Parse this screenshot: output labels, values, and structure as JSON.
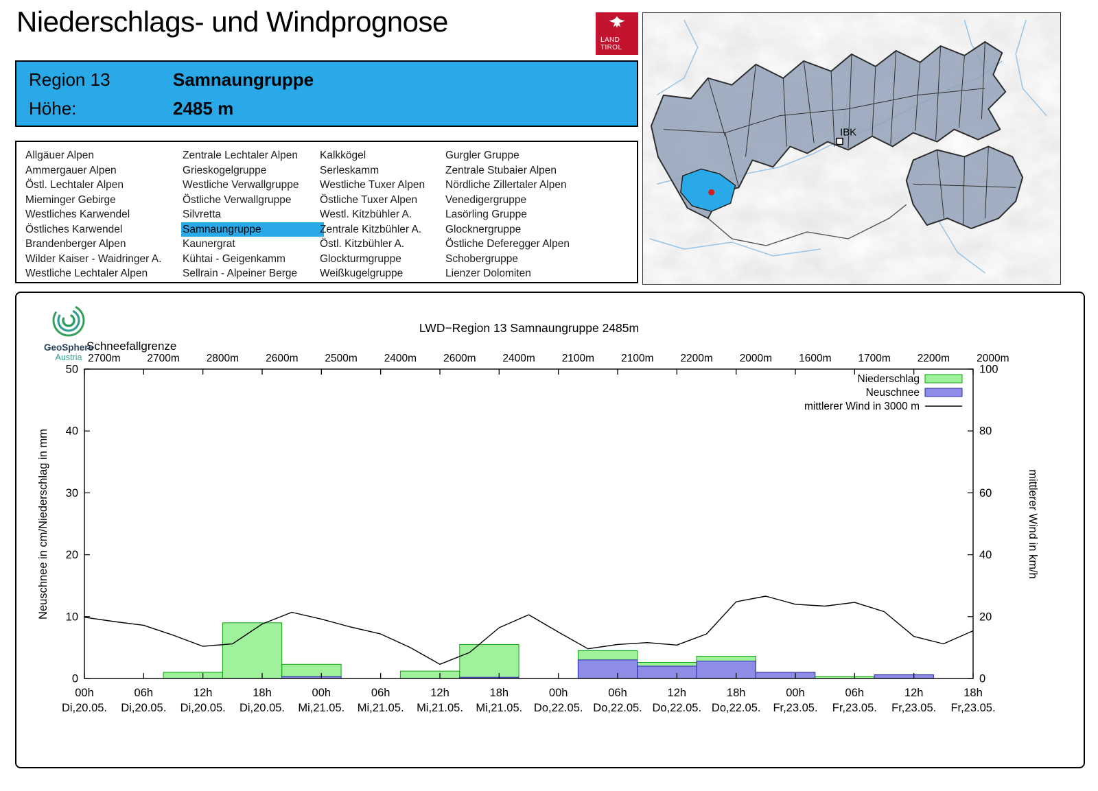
{
  "header": {
    "title": "Niederschlags- und Windprognose",
    "logo_line1": "LAND",
    "logo_line2": "TIROL"
  },
  "region_info": {
    "region_label": "Region 13",
    "region_name": "Samnaungruppe",
    "altitude_label": "Höhe:",
    "altitude_value": "2485 m"
  },
  "region_list": {
    "selected": "Samnaungruppe",
    "columns": [
      [
        "Allgäuer Alpen",
        "Ammergauer Alpen",
        "Östl. Lechtaler Alpen",
        "Mieminger Gebirge",
        "Westliches Karwendel",
        "Östliches Karwendel",
        "Brandenberger Alpen",
        "Wilder Kaiser - Waidringer A.",
        "Westliche Lechtaler Alpen"
      ],
      [
        "Zentrale Lechtaler Alpen",
        "Grieskogelgruppe",
        "Westliche Verwallgruppe",
        "Östliche Verwallgruppe",
        "Silvretta",
        "Samnaungruppe",
        "Kaunergrat",
        "Kühtai - Geigenkamm",
        "Sellrain - Alpeiner Berge"
      ],
      [
        "Kalkkögel",
        "Serleskamm",
        "Westliche Tuxer Alpen",
        "Östliche Tuxer Alpen",
        "Westl. Kitzbühler A.",
        "Zentrale Kitzbühler A.",
        "Östl. Kitzbühler A.",
        "Glockturmgruppe",
        "Weißkugelgruppe"
      ],
      [
        "Gurgler Gruppe",
        "Zentrale Stubaier Alpen",
        "Nördliche Zillertaler Alpen",
        "Venedigergruppe",
        "Lasörling Gruppe",
        "Glocknergruppe",
        "Östliche Deferegger Alpen",
        "Schobergruppe",
        "Lienzer Dolomiten"
      ]
    ]
  },
  "map": {
    "city_label": "IBK",
    "highlighted_region": "Samnaungruppe",
    "highlight_color": "#29a9e8"
  },
  "chart_data": {
    "type": "bar+line combo",
    "title": "LWD−Region 13 Samnaungruppe 2485m",
    "snowline_label": "Schneefallgrenze",
    "snowline_values": [
      "2700m",
      "2700m",
      "2800m",
      "2600m",
      "2500m",
      "2400m",
      "2600m",
      "2400m",
      "2100m",
      "2100m",
      "2200m",
      "2000m",
      "1600m",
      "1700m",
      "2200m",
      "2000m"
    ],
    "ylabel_left": "Neuschnee in cm/Niederschlag in mm",
    "ylabel_right": "mittlerer Wind in km/h",
    "ylim_left": [
      0,
      50
    ],
    "ylim_right": [
      0,
      100
    ],
    "yticks_left": [
      0,
      10,
      20,
      30,
      40,
      50
    ],
    "yticks_right": [
      0,
      20,
      40,
      60,
      80,
      100
    ],
    "x_hours_range": [
      0,
      90
    ],
    "x_ticks": [
      {
        "hour": 0,
        "time": "00h",
        "date": "Di,20.05."
      },
      {
        "hour": 6,
        "time": "06h",
        "date": "Di,20.05."
      },
      {
        "hour": 12,
        "time": "12h",
        "date": "Di,20.05."
      },
      {
        "hour": 18,
        "time": "18h",
        "date": "Di,20.05."
      },
      {
        "hour": 24,
        "time": "00h",
        "date": "Mi,21.05."
      },
      {
        "hour": 30,
        "time": "06h",
        "date": "Mi,21.05."
      },
      {
        "hour": 36,
        "time": "12h",
        "date": "Mi,21.05."
      },
      {
        "hour": 42,
        "time": "18h",
        "date": "Mi,21.05."
      },
      {
        "hour": 48,
        "time": "00h",
        "date": "Do,22.05."
      },
      {
        "hour": 54,
        "time": "06h",
        "date": "Do,22.05."
      },
      {
        "hour": 60,
        "time": "12h",
        "date": "Do,22.05."
      },
      {
        "hour": 66,
        "time": "18h",
        "date": "Do,22.05."
      },
      {
        "hour": 72,
        "time": "00h",
        "date": "Fr,23.05."
      },
      {
        "hour": 78,
        "time": "06h",
        "date": "Fr,23.05."
      },
      {
        "hour": 84,
        "time": "12h",
        "date": "Fr,23.05."
      },
      {
        "hour": 90,
        "time": "18h",
        "date": "Fr,23.05."
      }
    ],
    "colors": {
      "precip_fill": "#9ff29b",
      "precip_stroke": "#0aa00a",
      "snow_fill": "#8d8de8",
      "snow_stroke": "#2828a8",
      "wind_stroke": "#000000"
    },
    "legend": [
      {
        "label": "Niederschlag",
        "marker": "precip"
      },
      {
        "label": "Neuschnee",
        "marker": "snow"
      },
      {
        "label": "mittlerer Wind in 3000 m",
        "marker": "wind"
      }
    ],
    "series": {
      "niederschlag_mm": [
        {
          "start_hour": 8,
          "end_hour": 14,
          "value": 1.0
        },
        {
          "start_hour": 14,
          "end_hour": 20,
          "value": 9.0
        },
        {
          "start_hour": 20,
          "end_hour": 26,
          "value": 2.3
        },
        {
          "start_hour": 32,
          "end_hour": 38,
          "value": 1.2
        },
        {
          "start_hour": 38,
          "end_hour": 44,
          "value": 5.5
        },
        {
          "start_hour": 50,
          "end_hour": 56,
          "value": 4.5
        },
        {
          "start_hour": 56,
          "end_hour": 62,
          "value": 2.6
        },
        {
          "start_hour": 62,
          "end_hour": 68,
          "value": 3.6
        },
        {
          "start_hour": 68,
          "end_hour": 74,
          "value": 1.0
        },
        {
          "start_hour": 74,
          "end_hour": 80,
          "value": 0.3
        }
      ],
      "neuschnee_cm": [
        {
          "start_hour": 20,
          "end_hour": 26,
          "value": 0.3
        },
        {
          "start_hour": 38,
          "end_hour": 44,
          "value": 0.2
        },
        {
          "start_hour": 50,
          "end_hour": 56,
          "value": 3.0
        },
        {
          "start_hour": 56,
          "end_hour": 62,
          "value": 2.0
        },
        {
          "start_hour": 62,
          "end_hour": 68,
          "value": 2.8
        },
        {
          "start_hour": 68,
          "end_hour": 74,
          "value": 1.0
        },
        {
          "start_hour": 80,
          "end_hour": 86,
          "value": 0.6
        }
      ],
      "wind_kmh": {
        "start_hour": 0,
        "step_hours": 3,
        "values": [
          19.8,
          18.4,
          17.2,
          14.0,
          10.4,
          11.2,
          17.6,
          21.4,
          19.2,
          16.6,
          14.4,
          10.0,
          4.6,
          8.4,
          16.4,
          20.6,
          15.0,
          9.6,
          11.0,
          11.6,
          10.8,
          14.4,
          24.8,
          26.6,
          24.0,
          23.4,
          24.6,
          21.6,
          13.6,
          11.2,
          15.4
        ]
      }
    },
    "source_logo": {
      "line1": "GeoSphere",
      "line2": "Austria"
    }
  }
}
